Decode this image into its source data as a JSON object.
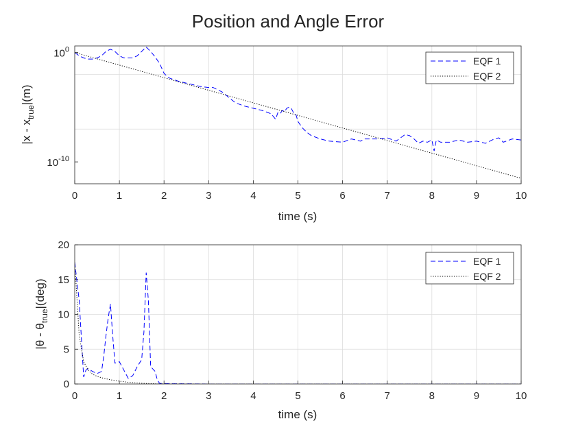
{
  "figure": {
    "title": "Position and Angle Error"
  },
  "colors": {
    "eqf1": "#0000ff",
    "eqf2": "#000000",
    "grid": "#dcdcdc",
    "axis": "#262626"
  },
  "chart_data": [
    {
      "type": "line",
      "yscale": "log",
      "xlim": [
        0,
        10
      ],
      "ylim_log10": [
        -12,
        0.6
      ],
      "grid": true,
      "legend_position": "top-right",
      "xlabel": "time (s)",
      "ylabel": {
        "main": "|x - x",
        "subscript": "true",
        "suffix": "|(m)"
      },
      "x_ticks": [
        0,
        1,
        2,
        3,
        4,
        5,
        6,
        7,
        8,
        9,
        10
      ],
      "y_ticks": [
        {
          "log10": 0,
          "base": "10",
          "exp": "0"
        },
        {
          "log10": -10,
          "base": "10",
          "exp": "-10"
        }
      ],
      "series": [
        {
          "name": "EQF 1",
          "style": "dashed",
          "x": [
            0,
            0.1,
            0.2,
            0.3,
            0.4,
            0.5,
            0.6,
            0.7,
            0.8,
            0.9,
            1.0,
            1.1,
            1.2,
            1.3,
            1.4,
            1.5,
            1.6,
            1.7,
            1.8,
            1.9,
            2.0,
            2.1,
            2.3,
            2.6,
            2.8,
            3.0,
            3.1,
            3.3,
            3.6,
            3.8,
            4.0,
            4.2,
            4.4,
            4.5,
            4.55,
            4.6,
            4.65,
            4.7,
            4.75,
            4.8,
            4.85,
            4.9,
            4.95,
            5.0,
            5.1,
            5.2,
            5.3,
            5.5,
            5.7,
            6.0,
            6.2,
            6.4,
            6.5,
            6.6,
            6.8,
            7.0,
            7.2,
            7.4,
            7.5,
            7.6,
            7.7,
            7.8,
            7.9,
            8.0,
            8.05,
            8.1,
            8.2,
            8.4,
            8.6,
            8.8,
            9.0,
            9.2,
            9.4,
            9.5,
            9.6,
            9.8,
            10.0
          ],
          "y_log10": [
            0,
            -0.3,
            -0.5,
            -0.6,
            -0.6,
            -0.5,
            -0.3,
            0.1,
            0.3,
            0.1,
            -0.3,
            -0.5,
            -0.5,
            -0.5,
            -0.3,
            0.1,
            0.5,
            0.1,
            -0.4,
            -1.0,
            -1.9,
            -2.3,
            -2.6,
            -2.9,
            -3.1,
            -3.2,
            -3.2,
            -3.6,
            -4.6,
            -4.9,
            -5.1,
            -5.3,
            -5.6,
            -6.1,
            -5.5,
            -5.6,
            -5.3,
            -5.4,
            -5.1,
            -5.0,
            -5.1,
            -5.5,
            -5.6,
            -6.3,
            -6.9,
            -7.3,
            -7.6,
            -7.9,
            -8.1,
            -8.2,
            -7.9,
            -8.1,
            -7.9,
            -7.9,
            -7.9,
            -7.8,
            -8.1,
            -7.5,
            -7.6,
            -7.9,
            -8.3,
            -8.1,
            -8.2,
            -8.0,
            -9.0,
            -8.0,
            -8.2,
            -8.2,
            -8.0,
            -8.2,
            -8.1,
            -8.3,
            -7.9,
            -7.8,
            -8.2,
            -7.9,
            -8.0
          ]
        },
        {
          "name": "EQF 2",
          "style": "dotted",
          "x": [
            0,
            10
          ],
          "y_log10": [
            0,
            -11.5
          ]
        }
      ]
    },
    {
      "type": "line",
      "xlim": [
        0,
        10
      ],
      "ylim": [
        0,
        20
      ],
      "grid": true,
      "legend_position": "top-right",
      "xlabel": "time (s)",
      "ylabel": {
        "main": "|θ - θ",
        "subscript": "true",
        "suffix": "|(deg)"
      },
      "x_ticks": [
        0,
        1,
        2,
        3,
        4,
        5,
        6,
        7,
        8,
        9,
        10
      ],
      "y_ticks": [
        0,
        5,
        10,
        15,
        20
      ],
      "series": [
        {
          "name": "EQF 1",
          "style": "dashed",
          "x": [
            0,
            0.1,
            0.2,
            0.25,
            0.3,
            0.4,
            0.5,
            0.6,
            0.65,
            0.7,
            0.75,
            0.8,
            0.85,
            0.9,
            1.0,
            1.1,
            1.2,
            1.3,
            1.4,
            1.5,
            1.55,
            1.6,
            1.65,
            1.7,
            1.8,
            1.85,
            1.9,
            2.0,
            3.0,
            5.0,
            7.0,
            10.0
          ],
          "y": [
            17.5,
            12.0,
            1.0,
            2.0,
            2.2,
            1.8,
            1.5,
            1.8,
            4.0,
            7.0,
            9.5,
            11.5,
            7.0,
            3.0,
            3.2,
            2.0,
            0.8,
            1.2,
            2.5,
            3.5,
            7.5,
            16.0,
            12.0,
            2.5,
            1.8,
            0.6,
            0.1,
            0.05,
            0.0,
            0.0,
            0.0,
            0.0
          ]
        },
        {
          "name": "EQF 2",
          "style": "dotted",
          "x": [
            0,
            0.1,
            0.2,
            0.3,
            0.4,
            0.5,
            0.6,
            0.7,
            0.8,
            0.9,
            1.0,
            1.2,
            1.4,
            1.6,
            1.8,
            2.0,
            3.0,
            10.0
          ],
          "y": [
            17.5,
            7.0,
            3.2,
            2.0,
            1.4,
            1.1,
            0.9,
            0.75,
            0.6,
            0.5,
            0.4,
            0.25,
            0.15,
            0.08,
            0.04,
            0.02,
            0.0,
            0.0
          ]
        }
      ]
    }
  ]
}
